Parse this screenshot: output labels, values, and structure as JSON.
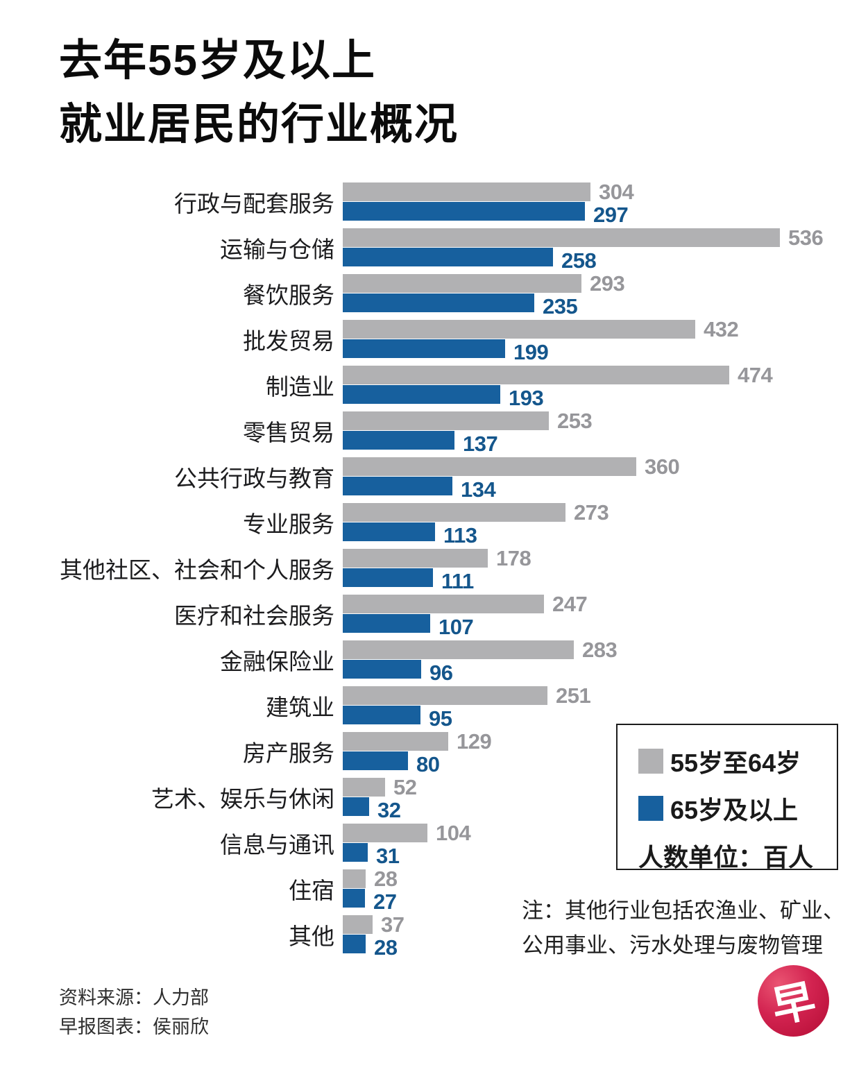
{
  "title": {
    "line1": "去年55岁及以上",
    "line2": "就业居民的行业概况"
  },
  "chart_data": {
    "type": "bar",
    "orientation": "horizontal",
    "title": "去年55岁及以上就业居民的行业概况",
    "unit": "人数单位：百人",
    "xmax": 536,
    "grid": false,
    "legend_position": "right-bottom-box",
    "categories": [
      "行政与配套服务",
      "运输与仓储",
      "餐饮服务",
      "批发贸易",
      "制造业",
      "零售贸易",
      "公共行政与教育",
      "专业服务",
      "其他社区、社会和个人服务",
      "医疗和社会服务",
      "金融保险业",
      "建筑业",
      "房产服务",
      "艺术、娱乐与休闲",
      "信息与通讯",
      "住宿",
      "其他"
    ],
    "series": [
      {
        "name": "55岁至64岁",
        "color": "#b1b1b3",
        "value_color": "#96969a",
        "values": [
          304,
          536,
          293,
          432,
          474,
          253,
          360,
          273,
          178,
          247,
          283,
          251,
          129,
          52,
          104,
          28,
          37
        ]
      },
      {
        "name": "65岁及以上",
        "color": "#17609e",
        "value_color": "#14568c",
        "values": [
          297,
          258,
          235,
          199,
          193,
          137,
          134,
          113,
          111,
          107,
          96,
          95,
          80,
          32,
          31,
          27,
          28
        ]
      }
    ]
  },
  "legend": {
    "items": [
      {
        "label": "55岁至64岁",
        "color": "#b1b1b3"
      },
      {
        "label": "65岁及以上",
        "color": "#17609e"
      }
    ],
    "unit": "人数单位：百人"
  },
  "note": {
    "line1": "注：其他行业包括农渔业、矿业、",
    "line2": "公用事业、污水处理与废物管理"
  },
  "source": {
    "line1": "资料来源：人力部",
    "line2": "早报图表：侯丽欣"
  },
  "logo": {
    "glyph": "早",
    "color": "#c01338"
  }
}
